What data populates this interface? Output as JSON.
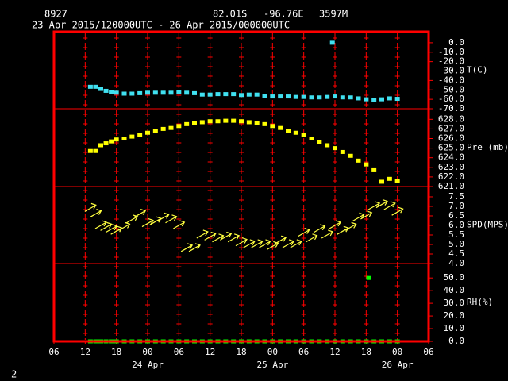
{
  "header": {
    "station": "8927",
    "lat": "82.01S",
    "lon": "-96.76E",
    "elev": "3597M",
    "period": "23 Apr 2015/120000UTC - 26 Apr 2015/000000UTC"
  },
  "footer": "2",
  "chart_data": [
    {
      "type": "scatter",
      "ylabel": "T(C)",
      "xlim": [
        6,
        78
      ],
      "ylim": [
        -70,
        11.7
      ],
      "yticks": [
        {
          "value": 0,
          "label": "0.0"
        },
        {
          "value": -10,
          "label": "-10.0"
        },
        {
          "value": -20,
          "label": "-20.0"
        },
        {
          "value": -30,
          "label": "-30.0"
        },
        {
          "value": -40,
          "label": "-40.0"
        },
        {
          "value": -50,
          "label": "-50.0"
        },
        {
          "value": -60,
          "label": "-60.0"
        },
        {
          "value": -70,
          "label": "-70.0"
        }
      ],
      "series": [
        {
          "color": "#40e0f0",
          "marker": "square",
          "x": [
            13,
            14,
            15,
            16,
            17,
            18,
            19.5,
            21,
            22.5,
            24,
            25.5,
            27,
            28.5,
            30,
            31.5,
            33,
            34.5,
            36,
            37.5,
            39,
            40.5,
            42,
            43.5,
            45,
            46.5,
            48,
            49.5,
            51,
            52.5,
            54,
            55.5,
            57,
            58.5,
            59.5,
            60,
            61.5,
            63,
            64.5,
            66,
            67.5,
            69,
            70.5,
            72
          ],
          "values": [
            -46.7,
            -46.7,
            -49,
            -51,
            -52,
            -53,
            -54,
            -54,
            -53.5,
            -53,
            -53,
            -53,
            -53,
            -52.5,
            -53,
            -53.5,
            -55,
            -55,
            -54.5,
            -54.5,
            -54.5,
            -55.5,
            -55,
            -55,
            -56.5,
            -57,
            -57,
            -57,
            -57.5,
            -57.5,
            -58,
            -58,
            -57.5,
            0,
            -57,
            -58,
            -58,
            -59,
            -60,
            -61,
            -60,
            -59,
            -59.5
          ]
        }
      ]
    },
    {
      "type": "scatter",
      "ylabel": "Pre (mb)",
      "xlim": [
        6,
        78
      ],
      "ylim": [
        621,
        629.1
      ],
      "yticks": [
        {
          "value": 628,
          "label": "628.0"
        },
        {
          "value": 627,
          "label": "627.0"
        },
        {
          "value": 626,
          "label": "626.0"
        },
        {
          "value": 625,
          "label": "625.0"
        },
        {
          "value": 624,
          "label": "624.0"
        },
        {
          "value": 623,
          "label": "623.0"
        },
        {
          "value": 622,
          "label": "622.0"
        },
        {
          "value": 621,
          "label": "621.0"
        }
      ],
      "series": [
        {
          "color": "#ffff00",
          "marker": "square",
          "x": [
            13,
            14,
            15,
            16,
            17,
            18,
            19.5,
            21,
            22.5,
            24,
            25.5,
            27,
            28.5,
            30,
            31.5,
            33,
            34.5,
            36,
            37.5,
            39,
            40.5,
            42,
            43.5,
            45,
            46.5,
            48,
            49.5,
            51,
            52.5,
            54,
            55.5,
            57,
            58.5,
            60,
            61.5,
            63,
            64.5,
            66,
            67.5,
            69,
            70.5,
            72
          ],
          "values": [
            624.7,
            624.7,
            625.3,
            625.5,
            625.7,
            625.9,
            626.0,
            626.2,
            626.4,
            626.6,
            626.8,
            627.0,
            627.1,
            627.3,
            627.5,
            627.6,
            627.7,
            627.8,
            627.8,
            627.85,
            627.85,
            627.8,
            627.7,
            627.6,
            627.5,
            627.3,
            627.1,
            626.8,
            626.6,
            626.4,
            626.0,
            625.6,
            625.3,
            625.0,
            624.6,
            624.2,
            623.7,
            623.3,
            622.7,
            621.5,
            621.8,
            621.6
          ]
        }
      ]
    },
    {
      "type": "scatter",
      "ylabel": "SPD(MPS)",
      "xlim": [
        6,
        78
      ],
      "ylim": [
        4,
        8.04
      ],
      "yticks": [
        {
          "value": 7.5,
          "label": "7.5"
        },
        {
          "value": 7,
          "label": "7.0"
        },
        {
          "value": 6.5,
          "label": "6.5"
        },
        {
          "value": 6,
          "label": "6.0"
        },
        {
          "value": 5.5,
          "label": "5.5"
        },
        {
          "value": 5,
          "label": "5.0"
        },
        {
          "value": 4.5,
          "label": "4.5"
        },
        {
          "value": 4,
          "label": "4.0"
        }
      ],
      "series": [
        {
          "color": "#ffff40",
          "marker": "arrow",
          "x": [
            13,
            14,
            15,
            16,
            17,
            18,
            19.5,
            21,
            22.5,
            24,
            25.5,
            27,
            28.5,
            30,
            31.5,
            33,
            34.5,
            36,
            37.5,
            39,
            40.5,
            42,
            43.5,
            45,
            46.5,
            48,
            49.5,
            51,
            52.5,
            54,
            55.5,
            57,
            58.5,
            60,
            61.5,
            63,
            64.5,
            66,
            67.5,
            69,
            70.5,
            72
          ],
          "values": [
            6.9,
            6.6,
            6.0,
            5.9,
            5.8,
            5.7,
            5.9,
            6.3,
            6.6,
            6.1,
            6.2,
            6.4,
            6.3,
            6.0,
            4.8,
            4.8,
            5.5,
            5.4,
            5.3,
            5.4,
            5.3,
            5.1,
            5.0,
            5.0,
            5.0,
            4.9,
            5.2,
            5.0,
            5.0,
            5.6,
            5.3,
            5.8,
            5.5,
            6.0,
            5.7,
            5.9,
            6.4,
            6.5,
            7.0,
            7.1,
            7.0,
            6.7
          ]
        }
      ]
    },
    {
      "type": "scatter",
      "ylabel": "RH(%)",
      "xlim": [
        6,
        78
      ],
      "ylim": [
        0,
        61.4
      ],
      "yticks": [
        {
          "value": 50,
          "label": "50.0"
        },
        {
          "value": 40,
          "label": "40.0"
        },
        {
          "value": 30,
          "label": "30.0"
        },
        {
          "value": 20,
          "label": "20.0"
        },
        {
          "value": 10,
          "label": "10.0"
        },
        {
          "value": 0,
          "label": "0.0"
        }
      ],
      "series": [
        {
          "color": "#00ff00",
          "marker": "square",
          "x": [
            13,
            14,
            15,
            16,
            17,
            18,
            19.5,
            21,
            22.5,
            24,
            25.5,
            27,
            28.5,
            30,
            31.5,
            33,
            34.5,
            36,
            37.5,
            39,
            40.5,
            42,
            43.5,
            45,
            46.5,
            48,
            49.5,
            51,
            52.5,
            54,
            55.5,
            57,
            58.5,
            60,
            61.5,
            63,
            64.5,
            66,
            66.5,
            67.5,
            69,
            70.5,
            72
          ],
          "values": [
            0,
            0,
            0,
            0,
            0,
            0,
            0,
            0,
            0,
            0,
            0,
            0,
            0,
            0,
            0,
            0,
            0,
            0,
            0,
            0,
            0,
            0,
            0,
            0,
            0,
            0,
            0,
            0,
            0,
            0,
            0,
            0,
            0,
            0,
            0,
            0,
            0,
            0,
            50,
            0,
            0,
            0,
            0
          ]
        }
      ],
      "xticks": [
        {
          "value": 6,
          "label": "06"
        },
        {
          "value": 12,
          "label": "12"
        },
        {
          "value": 18,
          "label": "18"
        },
        {
          "value": 24,
          "label": "00"
        },
        {
          "value": 30,
          "label": "06"
        },
        {
          "value": 36,
          "label": "12"
        },
        {
          "value": 42,
          "label": "18"
        },
        {
          "value": 48,
          "label": "00"
        },
        {
          "value": 54,
          "label": "06"
        },
        {
          "value": 60,
          "label": "12"
        },
        {
          "value": 66,
          "label": "18"
        },
        {
          "value": 72,
          "label": "00"
        },
        {
          "value": 78,
          "label": "06"
        }
      ],
      "date_labels": [
        {
          "value": 24,
          "label": "24 Apr"
        },
        {
          "value": 48,
          "label": "25 Apr"
        },
        {
          "value": 72,
          "label": "26 Apr"
        }
      ]
    }
  ]
}
